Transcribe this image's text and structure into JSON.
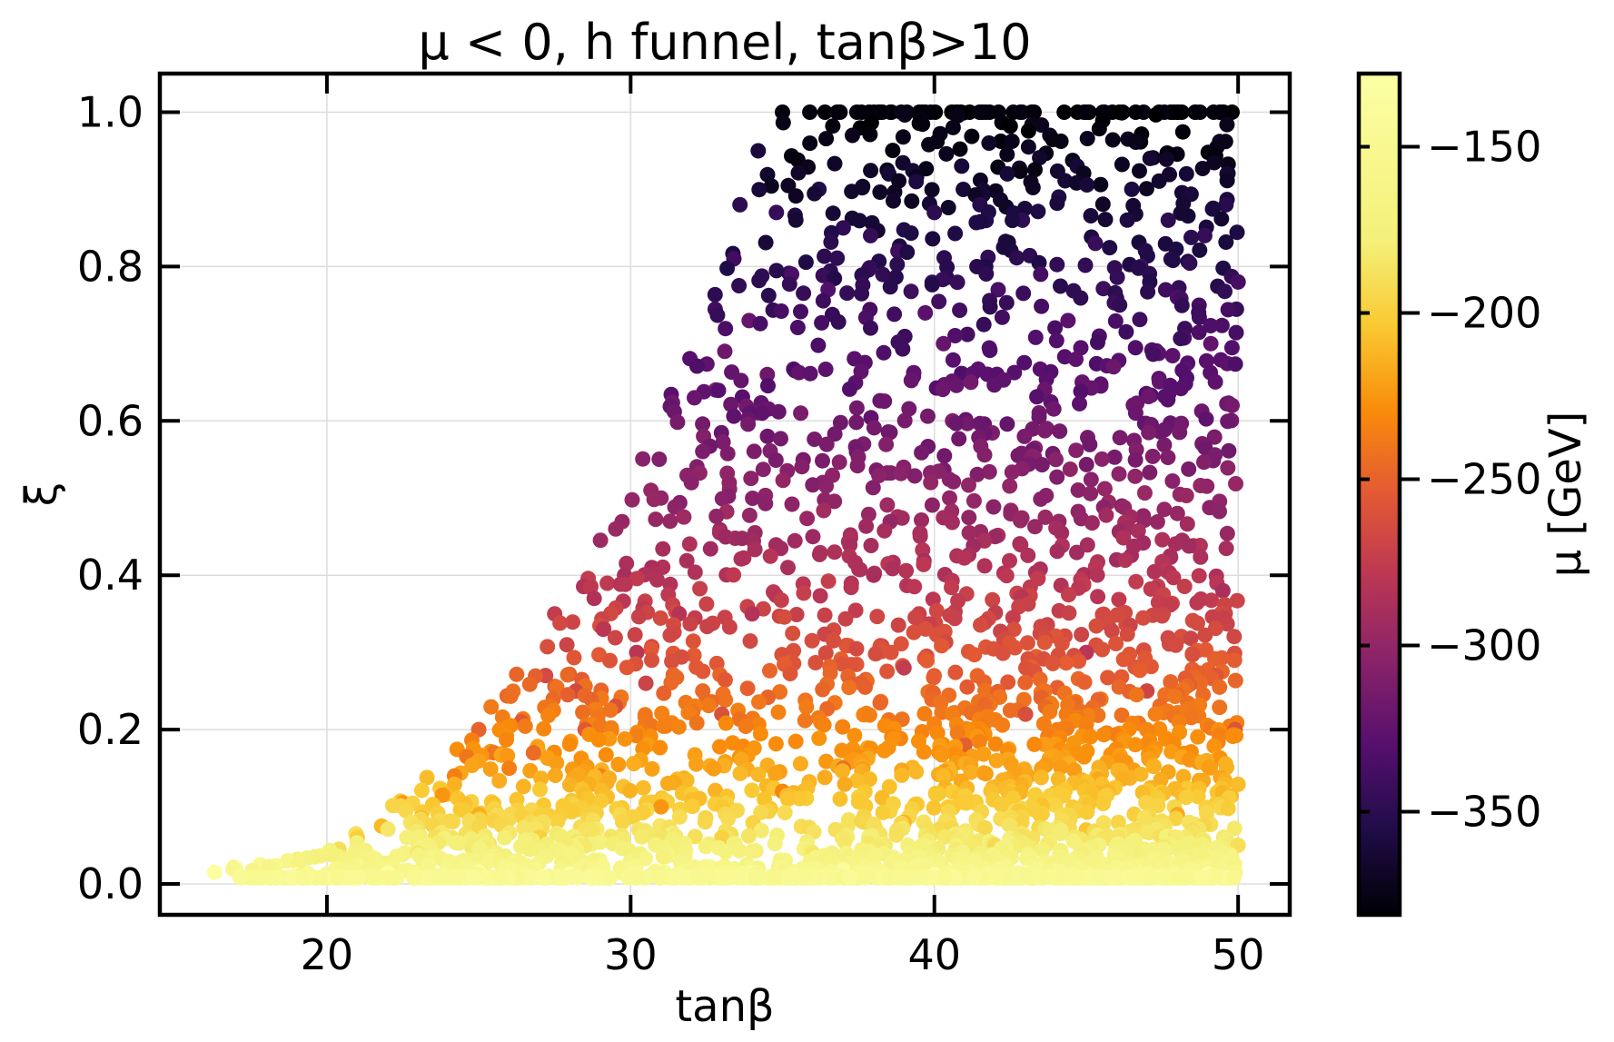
{
  "chart_data": {
    "type": "scatter",
    "title": "μ < 0, h funnel, tanβ>10",
    "xlabel": "tanβ",
    "ylabel": "ξ",
    "xlim": [
      14.5,
      51.7
    ],
    "ylim": [
      -0.04,
      1.05
    ],
    "xticks": [
      20,
      30,
      40,
      50
    ],
    "xtick_labels": [
      "20",
      "30",
      "40",
      "50"
    ],
    "yticks": [
      0.0,
      0.2,
      0.4,
      0.6,
      0.8,
      1.0
    ],
    "ytick_labels": [
      "0.0",
      "0.2",
      "0.4",
      "0.6",
      "0.8",
      "1.0"
    ],
    "grid": true,
    "colorbar": {
      "label": "μ [GeV]",
      "colormap": "inferno",
      "range": [
        -381,
        -128
      ],
      "ticks": [
        -350,
        -300,
        -250,
        -200,
        -150
      ],
      "tick_labels": [
        "−350",
        "−300",
        "−250",
        "−200",
        "−150"
      ]
    },
    "points_description": "approximately 2900 points; tanβ spans 16 to 50; ξ spans 0.01 to 1.0; μ spans about -380 GeV (largest ξ) to -130 GeV (smallest ξ); the upper envelope of ξ rises from about 0.02 at tanβ≈16 to 1.0 for tanβ≥35",
    "points": [
      [
        16.3,
        0.015,
        -130
      ],
      [
        17.0,
        0.02,
        -140
      ],
      [
        17.8,
        0.025,
        -150
      ],
      [
        18.7,
        0.03,
        -160
      ],
      [
        19.6,
        0.035,
        -175
      ],
      [
        20.4,
        0.045,
        -190
      ],
      [
        21.0,
        0.06,
        -200
      ],
      [
        21.8,
        0.075,
        -210
      ],
      [
        22.5,
        0.105,
        -225
      ],
      [
        23.1,
        0.085,
        -215
      ],
      [
        23.8,
        0.115,
        -225
      ],
      [
        24.2,
        0.14,
        -235
      ],
      [
        24.6,
        0.165,
        -240
      ],
      [
        25.0,
        0.2,
        -250
      ],
      [
        25.5,
        0.17,
        -240
      ],
      [
        26.0,
        0.15,
        -235
      ],
      [
        26.4,
        0.21,
        -255
      ],
      [
        26.8,
        0.17,
        -245
      ],
      [
        27.2,
        0.27,
        -265
      ],
      [
        27.5,
        0.35,
        -275
      ],
      [
        27.9,
        0.31,
        -270
      ],
      [
        28.2,
        0.25,
        -265
      ],
      [
        28.5,
        0.2,
        -255
      ],
      [
        28.8,
        0.37,
        -285
      ],
      [
        29.1,
        0.33,
        -280
      ],
      [
        29.5,
        0.23,
        -260
      ],
      [
        29.8,
        0.4,
        -290
      ],
      [
        30.2,
        0.3,
        -280
      ],
      [
        30.5,
        0.26,
        -270
      ],
      [
        30.7,
        0.41,
        -290
      ],
      [
        31.0,
        0.5,
        -300
      ],
      [
        31.3,
        0.47,
        -298
      ],
      [
        31.6,
        0.35,
        -282
      ],
      [
        32.0,
        0.52,
        -305
      ],
      [
        32.4,
        0.58,
        -308
      ],
      [
        32.8,
        0.64,
        -312
      ],
      [
        33.1,
        0.69,
        -318
      ],
      [
        33.4,
        0.81,
        -340
      ],
      [
        33.6,
        0.88,
        -350
      ],
      [
        33.9,
        0.73,
        -322
      ],
      [
        34.2,
        0.95,
        -360
      ],
      [
        34.5,
        0.66,
        -318
      ],
      [
        34.8,
        0.87,
        -345
      ],
      [
        35.0,
        1.0,
        -378
      ],
      [
        35.3,
        0.79,
        -335
      ],
      [
        35.6,
        0.61,
        -312
      ],
      [
        35.9,
        1.0,
        -378
      ],
      [
        36.2,
        0.9,
        -355
      ],
      [
        36.5,
        0.77,
        -332
      ],
      [
        36.8,
        1.0,
        -378
      ],
      [
        37.0,
        0.85,
        -348
      ],
      [
        37.3,
        0.97,
        -372
      ],
      [
        37.6,
        1.0,
        -378
      ],
      [
        37.9,
        0.84,
        -346
      ],
      [
        38.2,
        1.0,
        -378
      ],
      [
        38.5,
        0.92,
        -362
      ],
      [
        38.8,
        0.82,
        -342
      ],
      [
        39.1,
        1.0,
        -376
      ],
      [
        39.4,
        0.91,
        -358
      ],
      [
        39.7,
        0.74,
        -328
      ],
      [
        40.0,
        0.87,
        -350
      ],
      [
        40.3,
        0.7,
        -322
      ],
      [
        40.6,
        0.6,
        -310
      ],
      [
        40.9,
        0.93,
        -362
      ],
      [
        41.2,
        0.65,
        -316
      ],
      [
        41.5,
        0.88,
        -352
      ],
      [
        41.8,
        0.96,
        -368
      ],
      [
        42.1,
        0.77,
        -336
      ],
      [
        42.4,
        0.92,
        -362
      ],
      [
        42.6,
        1.0,
        -378
      ],
      [
        42.9,
        0.86,
        -348
      ],
      [
        43.2,
        1.0,
        -378
      ],
      [
        43.5,
        0.79,
        -338
      ],
      [
        43.8,
        0.97,
        -372
      ],
      [
        44.1,
        0.89,
        -356
      ],
      [
        44.4,
        0.73,
        -328
      ],
      [
        44.7,
        0.93,
        -362
      ],
      [
        45.0,
        1.0,
        -378
      ],
      [
        45.3,
        0.83,
        -344
      ],
      [
        45.6,
        1.0,
        -378
      ],
      [
        45.9,
        0.67,
        -320
      ],
      [
        46.2,
        1.0,
        -378
      ],
      [
        46.5,
        0.9,
        -358
      ],
      [
        46.8,
        0.8,
        -340
      ],
      [
        47.1,
        0.94,
        -364
      ],
      [
        47.4,
        1.0,
        -378
      ],
      [
        47.7,
        0.86,
        -350
      ],
      [
        48.0,
        0.76,
        -334
      ],
      [
        48.3,
        0.92,
        -362
      ],
      [
        48.6,
        1.0,
        -378
      ],
      [
        48.9,
        0.84,
        -346
      ],
      [
        49.1,
        0.7,
        -324
      ],
      [
        49.4,
        1.0,
        -378
      ],
      [
        49.6,
        0.88,
        -352
      ],
      [
        49.8,
        0.62,
        -314
      ],
      [
        50.0,
        0.78,
        -338
      ],
      [
        40.5,
        0.5,
        -300
      ],
      [
        42.0,
        0.45,
        -296
      ],
      [
        44.0,
        0.55,
        -305
      ],
      [
        46.0,
        0.42,
        -292
      ],
      [
        48.0,
        0.48,
        -298
      ],
      [
        49.5,
        0.38,
        -288
      ],
      [
        38.0,
        0.4,
        -290
      ],
      [
        36.0,
        0.45,
        -295
      ],
      [
        34.0,
        0.35,
        -283
      ],
      [
        45.0,
        0.3,
        -280
      ],
      [
        47.0,
        0.25,
        -268
      ],
      [
        49.9,
        0.2,
        -258
      ],
      [
        43.0,
        0.22,
        -262
      ],
      [
        41.0,
        0.18,
        -252
      ],
      [
        39.0,
        0.28,
        -275
      ],
      [
        37.0,
        0.15,
        -243
      ],
      [
        35.0,
        0.12,
        -232
      ],
      [
        33.0,
        0.22,
        -260
      ],
      [
        31.0,
        0.1,
        -225
      ],
      [
        29.0,
        0.14,
        -235
      ],
      [
        27.0,
        0.06,
        -200
      ],
      [
        25.0,
        0.09,
        -215
      ],
      [
        23.0,
        0.04,
        -185
      ],
      [
        21.0,
        0.025,
        -160
      ],
      [
        48.0,
        0.09,
        -218
      ],
      [
        45.0,
        0.07,
        -205
      ],
      [
        42.0,
        0.05,
        -192
      ],
      [
        39.0,
        0.08,
        -212
      ],
      [
        36.0,
        0.04,
        -185
      ],
      [
        33.0,
        0.06,
        -198
      ],
      [
        30.0,
        0.03,
        -168
      ],
      [
        50.0,
        0.05,
        -190
      ],
      [
        46.0,
        0.02,
        -148
      ],
      [
        43.0,
        0.015,
        -135
      ],
      [
        40.0,
        0.012,
        -130
      ],
      [
        37.0,
        0.018,
        -138
      ],
      [
        34.0,
        0.014,
        -132
      ],
      [
        31.0,
        0.016,
        -135
      ],
      [
        28.0,
        0.013,
        -130
      ],
      [
        25.0,
        0.015,
        -133
      ],
      [
        22.0,
        0.014,
        -132
      ],
      [
        19.0,
        0.012,
        -130
      ],
      [
        49.0,
        0.013,
        -131
      ]
    ]
  }
}
